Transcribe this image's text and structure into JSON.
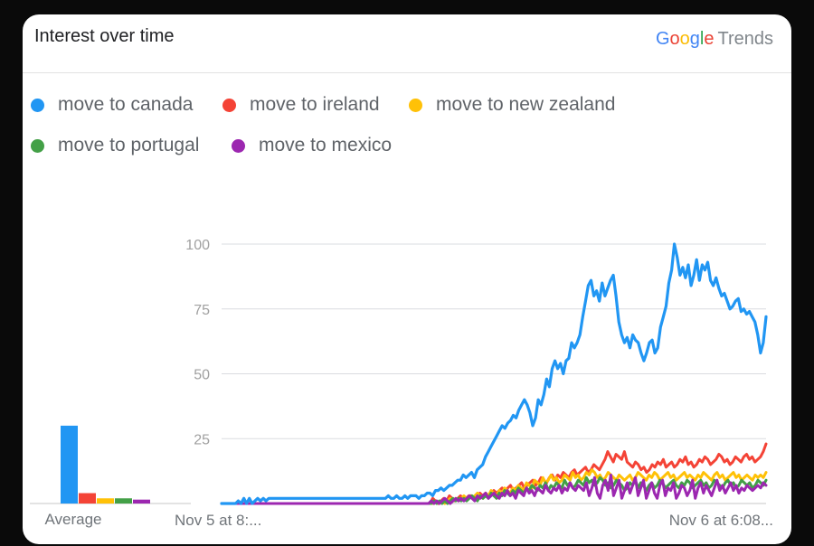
{
  "header": {
    "title": "Interest over time",
    "brand_letters": [
      "G",
      "o",
      "o",
      "g",
      "l",
      "e"
    ],
    "brand_product": "Trends"
  },
  "legend": [
    {
      "label": "move to canada",
      "color": "#2196f3"
    },
    {
      "label": "move to ireland",
      "color": "#f44336"
    },
    {
      "label": "move to new zealand",
      "color": "#ffc107"
    },
    {
      "label": "move to portugal",
      "color": "#43a047"
    },
    {
      "label": "move to mexico",
      "color": "#9c27b0"
    }
  ],
  "chart_data": {
    "type": "line",
    "ylim": [
      0,
      100
    ],
    "yticks": [
      "100",
      "75",
      "50",
      "25"
    ],
    "x_start_label": "Nov 5 at 8:...",
    "x_end_label": "Nov 6 at 6:08...",
    "grid": true,
    "average": {
      "label": "Average",
      "values": [
        30,
        4,
        2,
        2,
        1.5
      ]
    },
    "series": [
      {
        "name": "move to canada",
        "color": "#2196f3",
        "values": [
          0,
          0,
          0,
          0,
          0,
          0,
          1,
          0,
          2,
          0,
          2,
          0,
          1,
          2,
          1,
          2,
          1,
          2,
          2,
          2,
          2,
          2,
          2,
          2,
          2,
          2,
          2,
          2,
          2,
          2,
          2,
          2,
          2,
          2,
          2,
          2,
          2,
          2,
          2,
          2,
          2,
          2,
          2,
          2,
          2,
          2,
          2,
          2,
          2,
          2,
          2,
          2,
          2,
          2,
          2,
          2,
          2,
          2,
          2,
          2,
          3,
          2,
          2,
          3,
          2,
          2,
          3,
          2,
          3,
          3,
          3,
          2,
          3,
          3,
          4,
          4,
          3,
          5,
          5,
          6,
          5,
          6,
          7,
          7,
          8,
          9,
          9,
          11,
          10,
          11,
          12,
          10,
          13,
          14,
          15,
          18,
          20,
          22,
          24,
          26,
          28,
          30,
          29,
          31,
          32,
          34,
          33,
          36,
          38,
          40,
          38,
          35,
          30,
          33,
          40,
          38,
          42,
          48,
          45,
          52,
          55,
          52,
          54,
          50,
          55,
          56,
          62,
          60,
          62,
          65,
          72,
          78,
          84,
          86,
          80,
          82,
          78,
          85,
          80,
          83,
          86,
          88,
          80,
          70,
          65,
          62,
          64,
          60,
          65,
          63,
          62,
          58,
          55,
          58,
          62,
          63,
          58,
          60,
          68,
          72,
          76,
          85,
          90,
          100,
          95,
          88,
          91,
          87,
          92,
          84,
          88,
          94,
          86,
          92,
          90,
          93,
          86,
          84,
          87,
          83,
          80,
          81,
          78,
          75,
          76,
          78,
          79,
          74,
          75,
          73,
          74,
          72,
          70,
          65,
          58,
          62,
          72
        ]
      },
      {
        "name": "move to ireland",
        "color": "#f44336",
        "values": [
          0,
          0,
          0,
          0,
          0,
          0,
          0,
          0,
          0,
          0,
          0,
          0,
          0,
          0,
          0,
          0,
          0,
          0,
          0,
          0,
          0,
          0,
          0,
          0,
          0,
          0,
          0,
          0,
          0,
          0,
          0,
          0,
          0,
          0,
          0,
          0,
          0,
          0,
          0,
          0,
          0,
          0,
          0,
          0,
          0,
          0,
          0,
          0,
          0,
          0,
          0,
          0,
          0,
          0,
          0,
          0,
          0,
          0,
          0,
          0,
          0,
          0,
          0,
          0,
          0,
          0,
          0,
          0,
          0,
          0,
          0,
          0,
          0,
          0,
          0,
          0,
          2,
          1,
          0,
          1,
          2,
          1,
          3,
          2,
          1,
          2,
          3,
          2,
          2,
          3,
          3,
          2,
          3,
          4,
          3,
          4,
          3,
          4,
          5,
          4,
          5,
          6,
          4,
          6,
          7,
          5,
          6,
          7,
          8,
          6,
          7,
          8,
          9,
          7,
          8,
          10,
          9,
          8,
          10,
          11,
          9,
          11,
          10,
          12,
          11,
          10,
          12,
          13,
          11,
          12,
          13,
          14,
          12,
          13,
          15,
          14,
          13,
          15,
          17,
          20,
          18,
          16,
          19,
          18,
          17,
          20,
          16,
          15,
          14,
          16,
          15,
          13,
          14,
          12,
          13,
          15,
          14,
          16,
          15,
          17,
          14,
          15,
          16,
          14,
          15,
          17,
          16,
          18,
          15,
          16,
          14,
          15,
          17,
          16,
          18,
          17,
          15,
          16,
          17,
          19,
          18,
          16,
          17,
          15,
          16,
          18,
          17,
          16,
          18,
          19,
          17,
          18,
          16,
          17,
          18,
          20,
          23
        ]
      },
      {
        "name": "move to new zealand",
        "color": "#ffc107",
        "values": [
          0,
          0,
          0,
          0,
          0,
          0,
          0,
          0,
          0,
          0,
          0,
          0,
          0,
          0,
          0,
          0,
          0,
          0,
          0,
          0,
          0,
          0,
          0,
          0,
          0,
          0,
          0,
          0,
          0,
          0,
          0,
          0,
          0,
          0,
          0,
          0,
          0,
          0,
          0,
          0,
          0,
          0,
          0,
          0,
          0,
          0,
          0,
          0,
          0,
          0,
          0,
          0,
          0,
          0,
          0,
          0,
          0,
          0,
          0,
          0,
          0,
          0,
          0,
          0,
          0,
          0,
          0,
          0,
          0,
          0,
          0,
          0,
          0,
          0,
          0,
          0,
          0,
          0,
          0,
          1,
          0,
          1,
          0,
          1,
          2,
          1,
          2,
          1,
          2,
          3,
          2,
          3,
          2,
          3,
          4,
          3,
          2,
          4,
          3,
          5,
          4,
          3,
          5,
          4,
          6,
          5,
          4,
          6,
          5,
          7,
          6,
          5,
          8,
          7,
          6,
          9,
          8,
          7,
          10,
          8,
          9,
          11,
          9,
          10,
          8,
          9,
          11,
          10,
          9,
          12,
          10,
          11,
          9,
          10,
          12,
          11,
          13,
          12,
          10,
          11,
          9,
          10,
          12,
          11,
          10,
          9,
          11,
          10,
          9,
          10,
          11,
          9,
          10,
          12,
          11,
          10,
          9,
          11,
          10,
          12,
          11,
          9,
          10,
          11,
          12,
          10,
          11,
          9,
          10,
          11,
          12,
          10,
          11,
          10,
          9,
          11,
          10,
          12,
          11,
          10,
          9,
          11,
          12,
          10,
          11,
          9,
          10,
          11,
          12,
          10,
          11,
          9,
          10,
          11,
          10,
          9,
          11,
          10,
          11,
          10,
          12
        ]
      },
      {
        "name": "move to portugal",
        "color": "#43a047",
        "values": [
          0,
          0,
          0,
          0,
          0,
          0,
          0,
          0,
          0,
          0,
          0,
          0,
          0,
          0,
          0,
          0,
          0,
          0,
          0,
          0,
          0,
          0,
          0,
          0,
          0,
          0,
          0,
          0,
          0,
          0,
          0,
          0,
          0,
          0,
          0,
          0,
          0,
          0,
          0,
          0,
          0,
          0,
          0,
          0,
          0,
          0,
          0,
          0,
          0,
          0,
          0,
          0,
          0,
          0,
          0,
          0,
          0,
          0,
          0,
          0,
          0,
          0,
          0,
          0,
          0,
          0,
          0,
          0,
          0,
          0,
          0,
          0,
          0,
          0,
          0,
          0,
          0,
          0,
          1,
          0,
          1,
          0,
          1,
          0,
          1,
          2,
          1,
          2,
          1,
          2,
          1,
          2,
          3,
          2,
          1,
          3,
          2,
          3,
          2,
          4,
          3,
          2,
          4,
          3,
          5,
          4,
          3,
          5,
          4,
          6,
          5,
          4,
          6,
          5,
          7,
          6,
          5,
          7,
          6,
          8,
          5,
          7,
          6,
          8,
          7,
          6,
          9,
          7,
          8,
          6,
          7,
          9,
          8,
          7,
          10,
          8,
          9,
          7,
          8,
          10,
          9,
          7,
          8,
          6,
          7,
          9,
          8,
          7,
          5,
          6,
          8,
          7,
          9,
          6,
          8,
          7,
          5,
          7,
          8,
          6,
          7,
          9,
          8,
          6,
          7,
          8,
          9,
          7,
          6,
          8,
          7,
          9,
          8,
          6,
          7,
          8,
          9,
          7,
          8,
          6,
          7,
          9,
          8,
          7,
          6,
          8,
          9,
          7,
          8,
          6,
          7,
          9,
          8,
          7,
          8,
          6,
          7,
          9,
          8,
          7,
          9
        ]
      },
      {
        "name": "move to mexico",
        "color": "#9c27b0",
        "values": [
          0,
          0,
          0,
          0,
          0,
          0,
          0,
          0,
          0,
          0,
          0,
          0,
          0,
          0,
          0,
          0,
          0,
          0,
          0,
          0,
          0,
          0,
          0,
          0,
          0,
          0,
          0,
          0,
          0,
          0,
          0,
          0,
          0,
          0,
          0,
          0,
          0,
          0,
          0,
          0,
          0,
          0,
          0,
          0,
          0,
          0,
          0,
          0,
          0,
          0,
          0,
          0,
          0,
          0,
          0,
          0,
          0,
          0,
          0,
          0,
          0,
          0,
          0,
          0,
          0,
          0,
          0,
          0,
          0,
          0,
          0,
          0,
          0,
          0,
          0,
          0,
          0,
          1,
          0,
          1,
          0,
          1,
          2,
          1,
          0,
          1,
          2,
          1,
          2,
          1,
          2,
          3,
          2,
          1,
          3,
          2,
          3,
          4,
          2,
          3,
          4,
          3,
          2,
          4,
          3,
          5,
          3,
          4,
          2,
          5,
          4,
          3,
          6,
          4,
          5,
          3,
          6,
          5,
          4,
          7,
          5,
          4,
          6,
          5,
          7,
          4,
          6,
          5,
          8,
          6,
          5,
          7,
          6,
          5,
          8,
          3,
          6,
          10,
          4,
          2,
          7,
          9,
          5,
          11,
          3,
          6,
          9,
          2,
          5,
          8,
          4,
          7,
          10,
          3,
          6,
          9,
          2,
          5,
          8,
          4,
          2,
          7,
          9,
          3,
          6,
          5,
          8,
          2,
          4,
          7,
          6,
          3,
          5,
          9,
          2,
          6,
          8,
          4,
          7,
          5,
          3,
          6,
          9,
          5,
          7,
          4,
          6,
          8,
          5,
          7,
          4,
          6,
          5,
          7,
          6,
          5,
          6,
          7,
          6,
          8,
          7
        ]
      }
    ]
  }
}
